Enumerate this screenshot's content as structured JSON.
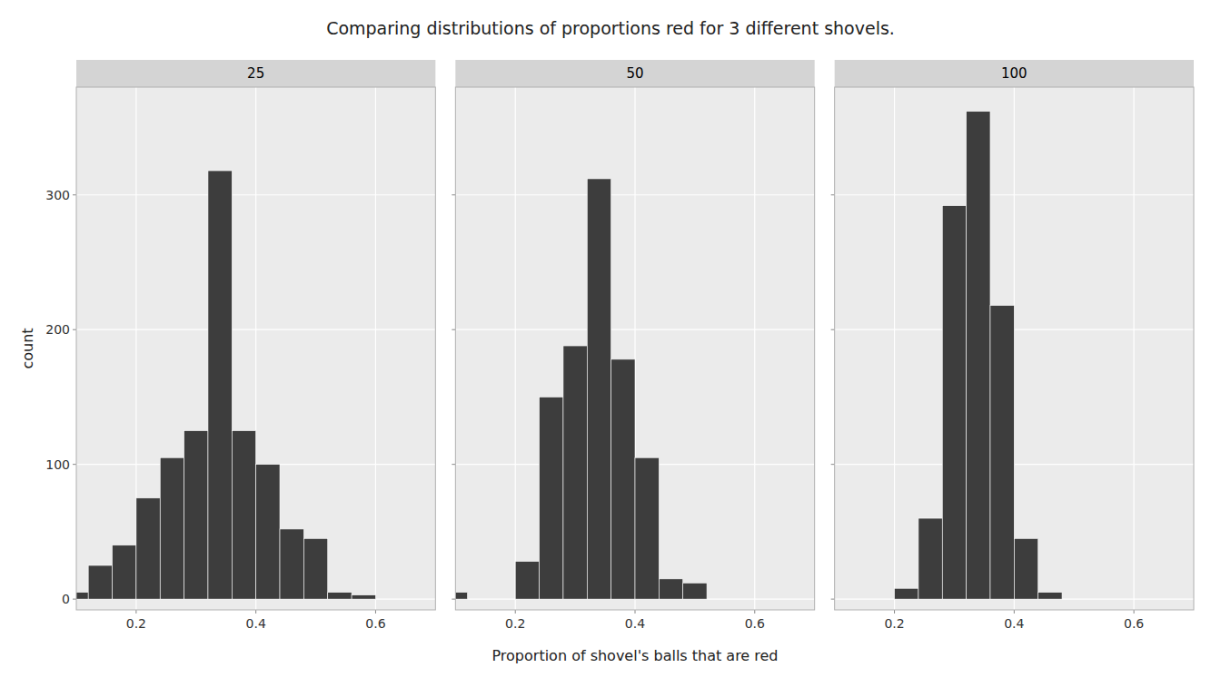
{
  "chart_data": [
    {
      "type": "histogram",
      "title": "Comparing distributions of proportions red for 3 different shovels.",
      "subtitle": "25",
      "ylabel": "count",
      "bins": [
        0.08,
        0.12,
        0.16,
        0.2,
        0.24,
        0.28,
        0.32,
        0.36,
        0.4,
        0.44,
        0.48,
        0.52,
        0.56,
        0.6,
        0.64,
        0.68,
        0.72
      ],
      "values": [
        5,
        25,
        40,
        75,
        105,
        125,
        318,
        125,
        100,
        52,
        45,
        5,
        3,
        0,
        0,
        0
      ],
      "color": "#3d3d3d",
      "xlim": [
        0.1,
        0.7
      ],
      "ylim": [
        -8,
        380
      ],
      "xticks": [
        0.2,
        0.4,
        0.6
      ],
      "yticks": [
        0,
        100,
        200,
        300
      ],
      "grid": true
    },
    {
      "type": "histogram",
      "subtitle": "50",
      "xlabel": "Proportion of shovel's balls that are red",
      "bins": [
        0.08,
        0.12,
        0.16,
        0.2,
        0.24,
        0.28,
        0.32,
        0.36,
        0.4,
        0.44,
        0.48,
        0.52,
        0.56,
        0.6,
        0.64,
        0.68,
        0.72
      ],
      "values": [
        5,
        0,
        0,
        28,
        150,
        188,
        312,
        178,
        105,
        15,
        12,
        0,
        0,
        0,
        0,
        0
      ],
      "color": "#3d3d3d",
      "xlim": [
        0.1,
        0.7
      ],
      "ylim": [
        -8,
        380
      ],
      "xticks": [
        0.2,
        0.4,
        0.6
      ],
      "yticks": [
        0,
        100,
        200,
        300
      ],
      "grid": true,
      "tick_labels": "x"
    },
    {
      "type": "histogram",
      "subtitle": "100",
      "bins": [
        0.08,
        0.12,
        0.16,
        0.2,
        0.24,
        0.28,
        0.32,
        0.36,
        0.4,
        0.44,
        0.48,
        0.52,
        0.56,
        0.6,
        0.64,
        0.68,
        0.72
      ],
      "values": [
        0,
        0,
        0,
        8,
        60,
        292,
        362,
        218,
        45,
        5,
        0,
        0,
        0,
        0,
        0,
        0
      ],
      "color": "#3d3d3d",
      "xlim": [
        0.1,
        0.7
      ],
      "ylim": [
        -8,
        380
      ],
      "xticks": [
        0.2,
        0.4,
        0.6
      ],
      "yticks": [
        0,
        100,
        200,
        300
      ],
      "grid": true,
      "tick_labels": "x"
    }
  ]
}
